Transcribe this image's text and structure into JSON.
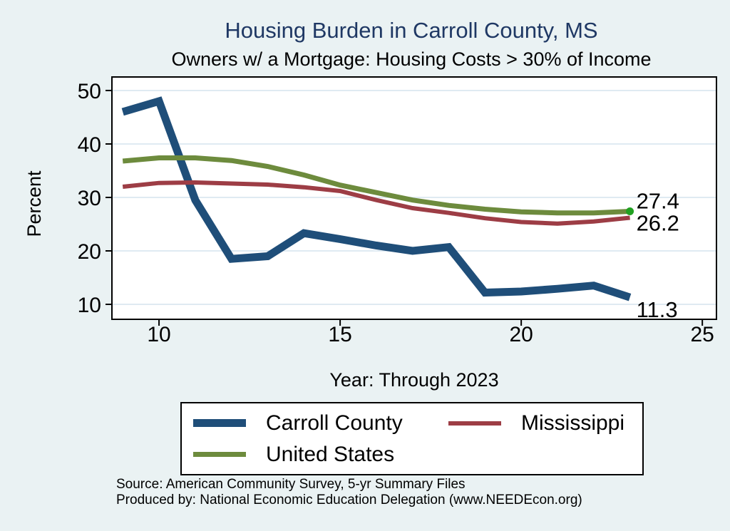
{
  "page": {
    "title": "Housing Burden in Carroll County, MS",
    "subtitle": "Owners w/ a Mortgage: Housing Costs > 30% of Income",
    "source_line1": "Source: American Community Survey, 5-yr Summary Files",
    "source_line2": "Produced by: National Economic Education Delegation (www.NEEDEcon.org)"
  },
  "colors": {
    "background": "#eaf2f3",
    "plot_background": "#ffffff",
    "gridline": "#dfeaf2",
    "title_text": "#1f3864",
    "axis": "#000000",
    "carroll_county": "#1f4e79",
    "mississippi": "#9d3d45",
    "united_states": "#6d8b3d",
    "us_end_marker": "#21a121"
  },
  "chart_data": {
    "type": "line",
    "title": "Housing Burden in Carroll County, MS",
    "subtitle": "Owners w/ a Mortgage: Housing Costs > 30% of Income",
    "xlabel": "Year: Through 2023",
    "ylabel": "Percent",
    "x": [
      9,
      10,
      11,
      12,
      13,
      14,
      15,
      16,
      17,
      18,
      19,
      20,
      21,
      22,
      23
    ],
    "series": [
      {
        "name": "Carroll County",
        "color_key": "carroll_county",
        "values": [
          46.0,
          48.0,
          29.5,
          18.5,
          19.0,
          23.3,
          22.2,
          21.0,
          20.0,
          20.7,
          12.2,
          12.4,
          12.9,
          13.5,
          11.3
        ],
        "end_label": "11.3",
        "end_label_dy": 28,
        "width": 11
      },
      {
        "name": "Mississippi",
        "color_key": "mississippi",
        "values": [
          32.0,
          32.7,
          32.8,
          32.6,
          32.4,
          31.9,
          31.2,
          29.5,
          28.0,
          27.1,
          26.1,
          25.4,
          25.1,
          25.5,
          26.2
        ],
        "end_label": "26.2",
        "end_label_dy": 18,
        "width": 6
      },
      {
        "name": "United States",
        "color_key": "united_states",
        "values": [
          36.8,
          37.4,
          37.4,
          36.9,
          35.8,
          34.2,
          32.3,
          30.9,
          29.5,
          28.5,
          27.8,
          27.3,
          27.1,
          27.1,
          27.4
        ],
        "end_label": "27.4",
        "end_label_dy": -4,
        "width": 7,
        "end_marker": true,
        "end_marker_color_key": "us_end_marker",
        "end_marker_radius": 5.5
      }
    ],
    "xticks": [
      10,
      15,
      20,
      25
    ],
    "yticks": [
      10,
      20,
      30,
      40,
      50
    ],
    "xlim": [
      8.7,
      25.39
    ],
    "ylim": [
      7.2,
      52.53
    ],
    "grid": "horizontal",
    "legend_position": "bottom"
  },
  "legend": {
    "items": [
      {
        "label": "Carroll County",
        "color_key": "carroll_county"
      },
      {
        "label": "Mississippi",
        "color_key": "mississippi"
      },
      {
        "label": "United States",
        "color_key": "united_states"
      }
    ]
  }
}
